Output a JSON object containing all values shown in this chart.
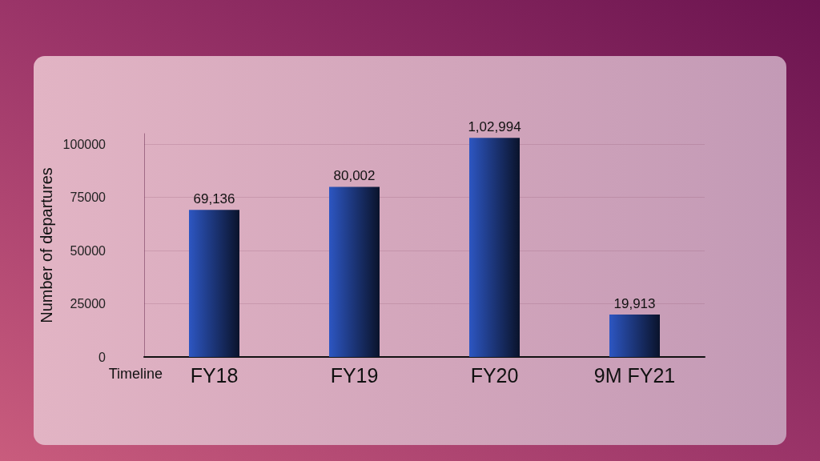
{
  "chart_data": {
    "type": "bar",
    "xlabel": "Timeline",
    "ylabel": "Number of departures",
    "categories": [
      "FY18",
      "FY19",
      "FY20",
      "9M FY21"
    ],
    "values": [
      69136,
      80002,
      102994,
      19913
    ],
    "color": "#2d56c2",
    "value_labels": [
      "69,136",
      "80,002",
      "1,02,994",
      "19,913"
    ],
    "ylim": [
      0,
      105000
    ],
    "yticks": [
      0,
      25000,
      50000,
      75000,
      100000
    ],
    "grid": "y"
  }
}
